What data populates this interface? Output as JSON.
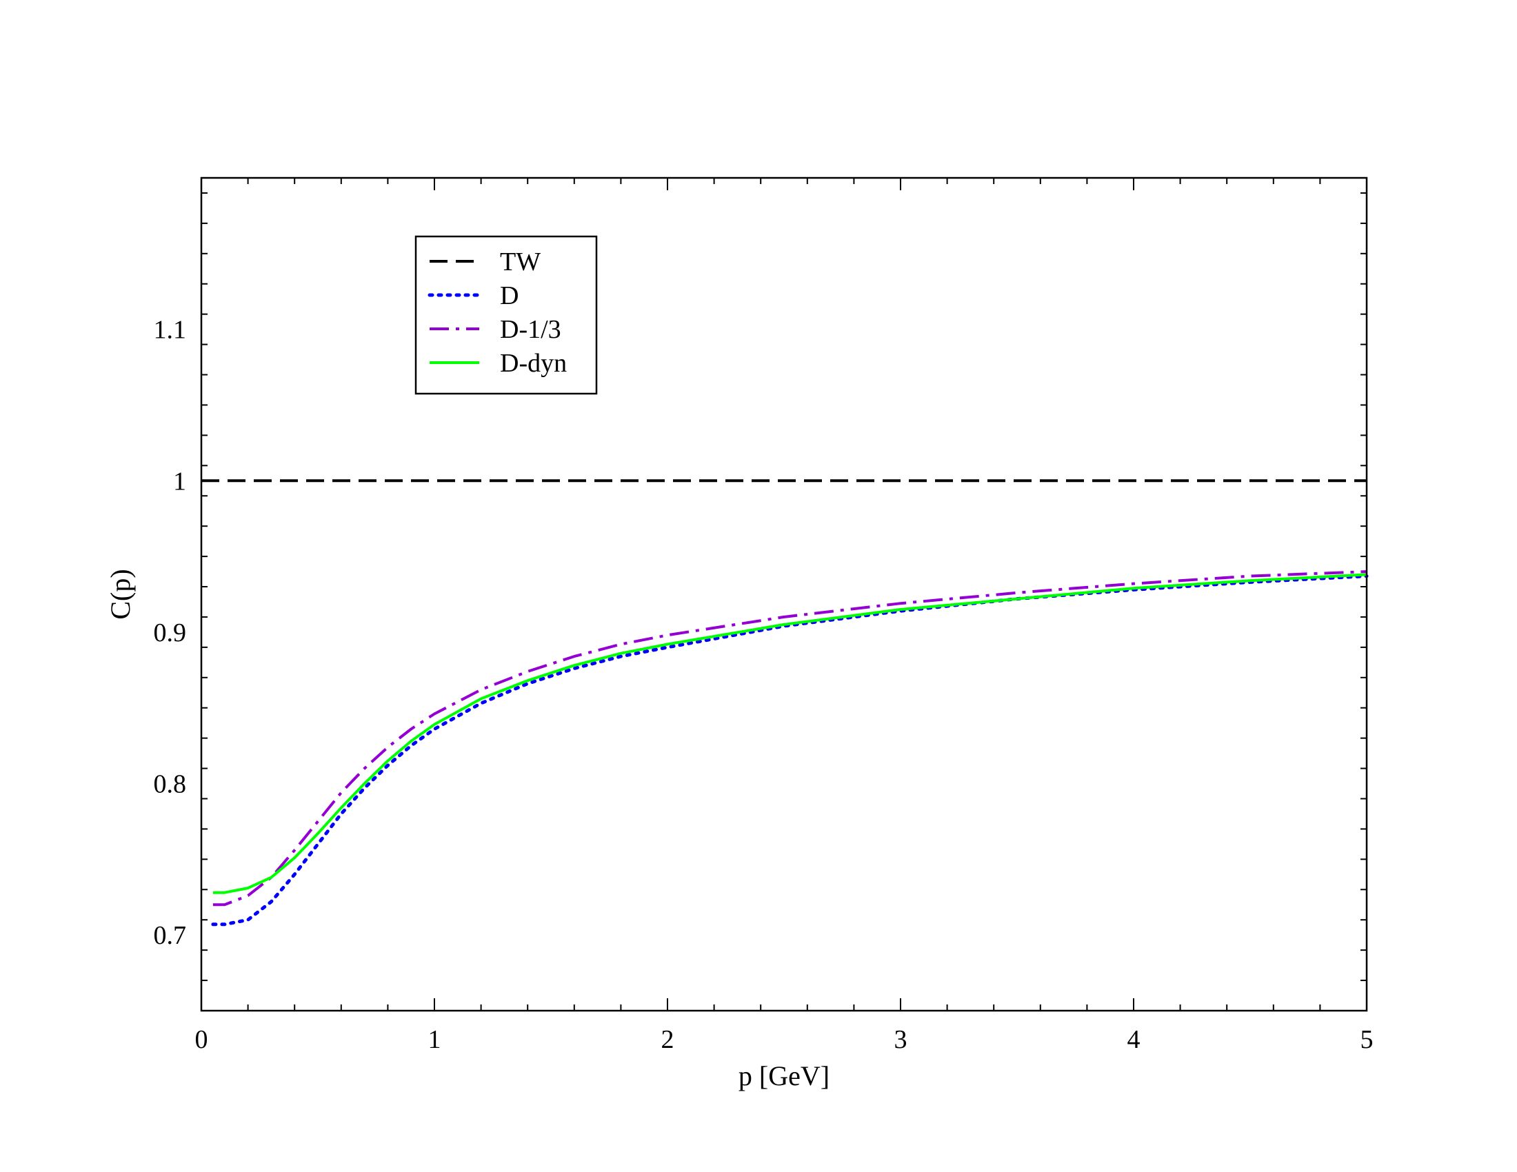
{
  "chart_data": {
    "type": "line",
    "title": "",
    "xlabel": "p [GeV]",
    "ylabel": "C(p)",
    "xlim": [
      0,
      5
    ],
    "ylim": [
      0.65,
      1.2
    ],
    "x_ticks": [
      "0",
      "1",
      "2",
      "3",
      "4",
      "5"
    ],
    "y_ticks": [
      "0.7",
      "0.8",
      "0.9",
      "1",
      "1.1"
    ],
    "legend_position": "top-left",
    "grid": false,
    "series": [
      {
        "name": "TW",
        "color": "#000000",
        "style": "dashed",
        "x": [
          0,
          5
        ],
        "y": [
          1.0,
          1.0
        ]
      },
      {
        "name": "D",
        "color": "#0000ff",
        "style": "dotted",
        "x": [
          0.05,
          0.1,
          0.2,
          0.3,
          0.4,
          0.5,
          0.6,
          0.7,
          0.8,
          0.9,
          1.0,
          1.2,
          1.4,
          1.6,
          1.8,
          2.0,
          2.5,
          3.0,
          3.5,
          4.0,
          4.5,
          5.0
        ],
        "y": [
          0.707,
          0.707,
          0.71,
          0.722,
          0.74,
          0.76,
          0.78,
          0.797,
          0.812,
          0.825,
          0.836,
          0.853,
          0.866,
          0.876,
          0.884,
          0.89,
          0.904,
          0.914,
          0.922,
          0.928,
          0.933,
          0.937
        ]
      },
      {
        "name": "D-1/3",
        "color": "#9400d3",
        "style": "dashdot",
        "x": [
          0.05,
          0.1,
          0.2,
          0.3,
          0.4,
          0.5,
          0.6,
          0.7,
          0.8,
          0.9,
          1.0,
          1.2,
          1.4,
          1.6,
          1.8,
          2.0,
          2.5,
          3.0,
          3.5,
          4.0,
          4.5,
          5.0
        ],
        "y": [
          0.72,
          0.72,
          0.726,
          0.738,
          0.756,
          0.775,
          0.794,
          0.81,
          0.824,
          0.836,
          0.846,
          0.862,
          0.874,
          0.884,
          0.892,
          0.898,
          0.91,
          0.919,
          0.926,
          0.932,
          0.937,
          0.94
        ]
      },
      {
        "name": "D-dyn",
        "color": "#00ff00",
        "style": "solid",
        "x": [
          0.05,
          0.1,
          0.2,
          0.3,
          0.4,
          0.5,
          0.6,
          0.7,
          0.8,
          0.9,
          1.0,
          1.2,
          1.4,
          1.6,
          1.8,
          2.0,
          2.5,
          3.0,
          3.5,
          4.0,
          4.5,
          5.0
        ],
        "y": [
          0.728,
          0.728,
          0.731,
          0.738,
          0.751,
          0.767,
          0.784,
          0.8,
          0.815,
          0.828,
          0.839,
          0.856,
          0.868,
          0.878,
          0.886,
          0.892,
          0.905,
          0.915,
          0.922,
          0.929,
          0.934,
          0.938
        ]
      }
    ]
  }
}
